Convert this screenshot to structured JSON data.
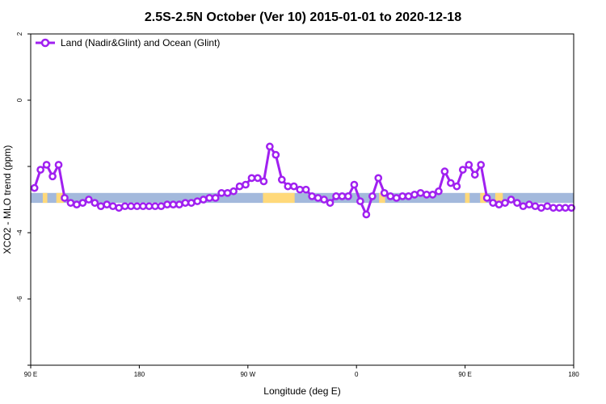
{
  "chart_data": {
    "type": "line",
    "title": "2.5S-2.5N October (Ver 10)   2015-01-01 to 2020-12-18",
    "xlabel": "Longitude (deg E)",
    "ylabel": "XCO2 - MLO trend (ppm)",
    "xlim": [
      90,
      450
    ],
    "ylim": [
      -8,
      2
    ],
    "x_ticks": [
      {
        "value": 90,
        "label": "90 E"
      },
      {
        "value": 162,
        "label": "180"
      },
      {
        "value": 234,
        "label": "90 W"
      },
      {
        "value": 306,
        "label": "0"
      },
      {
        "value": 378,
        "label": "90 E"
      },
      {
        "value": 450,
        "label": "180"
      }
    ],
    "y_ticks": [
      {
        "value": 2,
        "label": "2"
      },
      {
        "value": 0,
        "label": "0"
      },
      {
        "value": -2,
        "label": ""
      },
      {
        "value": -4,
        "label": "-4"
      },
      {
        "value": -6,
        "label": "-6"
      },
      {
        "value": -8,
        "label": ""
      }
    ],
    "grid": false,
    "legend_position": "top-left",
    "series": [
      {
        "name": "Land (Nadir&Glint) and Ocean (Glint)",
        "color": "#a020f0",
        "x": [
          92.5,
          96.5,
          100.5,
          104.5,
          108.5,
          112.5,
          116.5,
          120.5,
          124.5,
          128.5,
          132.5,
          136.5,
          140.5,
          144.5,
          148.5,
          152.5,
          156.5,
          160.5,
          164.5,
          168.5,
          172.5,
          176.5,
          180.5,
          184.5,
          188.5,
          192.5,
          196.5,
          200.5,
          204.5,
          208.5,
          212.5,
          216.5,
          220.5,
          224.5,
          228.5,
          232.5,
          236.5,
          240.5,
          244.5,
          248.5,
          252.5,
          256.5,
          260.5,
          264.5,
          268.5,
          272.5,
          276.5,
          280.5,
          284.5,
          288.5,
          292.5,
          296.5,
          300.5,
          304.5,
          308.5,
          312.5,
          316.5,
          320.5,
          324.5,
          328.5,
          332.5,
          336.5,
          340.5,
          344.5,
          348.5,
          352.5,
          356.5,
          360.5,
          364.5,
          368.5,
          372.5,
          376.5,
          380.5,
          384.5,
          388.5,
          392.5,
          396.5,
          400.5,
          404.5,
          408.5,
          412.5,
          416.5,
          420.5,
          424.5,
          428.5,
          432.5,
          436.5,
          440.5,
          444.5,
          448.5
        ],
        "values": [
          -2.65,
          -2.1,
          -1.95,
          -2.3,
          -1.95,
          -2.95,
          -3.1,
          -3.15,
          -3.1,
          -3.0,
          -3.1,
          -3.2,
          -3.15,
          -3.2,
          -3.25,
          -3.2,
          -3.2,
          -3.2,
          -3.2,
          -3.2,
          -3.2,
          -3.2,
          -3.15,
          -3.15,
          -3.15,
          -3.1,
          -3.1,
          -3.05,
          -3.0,
          -2.95,
          -2.95,
          -2.8,
          -2.8,
          -2.75,
          -2.6,
          -2.55,
          -2.35,
          -2.35,
          -2.45,
          -1.4,
          -1.65,
          -2.4,
          -2.6,
          -2.6,
          -2.7,
          -2.7,
          -2.9,
          -2.95,
          -3.0,
          -3.1,
          -2.9,
          -2.9,
          -2.9,
          -2.55,
          -3.05,
          -3.45,
          -2.9,
          -2.35,
          -2.8,
          -2.9,
          -2.95,
          -2.9,
          -2.9,
          -2.85,
          -2.8,
          -2.85,
          -2.85,
          -2.75,
          -2.15,
          -2.5,
          -2.6,
          -2.1,
          -1.95,
          -2.25,
          -1.95,
          -2.95,
          -3.1,
          -3.15,
          -3.1,
          -3.0,
          -3.1,
          -3.2,
          -3.15,
          -3.2,
          -3.25,
          -3.2,
          -3.25,
          -3.25,
          -3.25,
          -3.25
        ]
      }
    ],
    "background_band": {
      "y_range": [
        -3.1,
        -2.8
      ],
      "colors": {
        "ocean": "#a3b9dc",
        "land": "#ffd97a"
      },
      "land_lon_ranges": [
        [
          98,
          101
        ],
        [
          107,
          112
        ],
        [
          244,
          265
        ],
        [
          321,
          325
        ],
        [
          378,
          381
        ],
        [
          388,
          392
        ],
        [
          398,
          403
        ]
      ]
    }
  }
}
